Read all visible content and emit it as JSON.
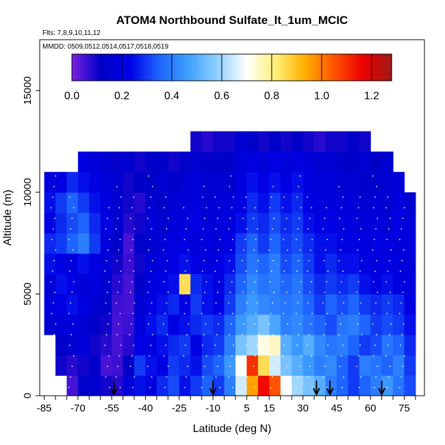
{
  "chart_data": {
    "type": "heatmap",
    "title": "ATOM4 Northbound Sulfate_lt_1um_MCIC",
    "subtitle_flights": "Flts: 7,8,9,10,11,12",
    "subtitle_dates": "MMDD: 0509,0512,0514,0517,0518,0519",
    "xlabel": "Latitude (deg N)",
    "ylabel": "Altitude (m)",
    "xlim": [
      -87,
      84
    ],
    "ylim": [
      0,
      17500
    ],
    "x_ticks": [
      -85,
      -70,
      -55,
      -40,
      -25,
      -10,
      5,
      15,
      30,
      45,
      60,
      75
    ],
    "x_tick_labels": [
      "-85",
      "-70",
      "-55",
      "-40",
      "-25",
      "-10",
      "5",
      "15",
      "30",
      "45",
      "60",
      "75"
    ],
    "y_ticks": [
      0,
      5000,
      10000,
      15000
    ],
    "y_tick_labels": [
      "0",
      "5000",
      "10000",
      "15000"
    ],
    "colorbar": {
      "min": 0.0,
      "max": 1.28,
      "ticks": [
        0.0,
        0.2,
        0.4,
        0.6,
        0.8,
        1.0,
        1.2
      ],
      "tick_labels": [
        "0.0",
        "0.2",
        "0.4",
        "0.6",
        "0.8",
        "1.0",
        "1.2"
      ],
      "colors": [
        "#7b1fe0",
        "#0000c8",
        "#0000e6",
        "#1e64ff",
        "#3fa0ff",
        "#8fcfff",
        "#ffffff",
        "#fff07a",
        "#ffb000",
        "#ff5500",
        "#ee0000",
        "#a01818"
      ]
    },
    "arrow_latitudes": [
      -54,
      -10,
      36,
      42,
      65
    ],
    "lat_bins": [
      -85,
      -80,
      -75,
      -70,
      -65,
      -60,
      -55,
      -50,
      -45,
      -40,
      -35,
      -30,
      -25,
      -20,
      -15,
      -10,
      -5,
      0,
      5,
      10,
      15,
      20,
      25,
      30,
      35,
      40,
      45,
      50,
      55,
      60,
      65,
      70,
      75,
      80
    ],
    "alt_bins_km": [
      0,
      1,
      2,
      3,
      4,
      5,
      6,
      7,
      8,
      9,
      10,
      11,
      12,
      13
    ],
    "sulfate_grid": [
      [
        null,
        null,
        0.05,
        0.12,
        0.15,
        0.1,
        0.08,
        0.18,
        0.25,
        0.2,
        0.28,
        0.32,
        0.25,
        0.3,
        0.35,
        0.3,
        0.4,
        0.65,
        0.95,
        1.15,
        1.05,
        0.7,
        0.6,
        0.55,
        0.5,
        0.4,
        0.35,
        0.3,
        0.35,
        0.4,
        0.45,
        0.38,
        0.32,
        null
      ],
      [
        null,
        0.1,
        0.08,
        0.1,
        0.12,
        0.05,
        0.06,
        0.12,
        0.3,
        0.25,
        0.22,
        0.3,
        0.28,
        0.25,
        0.32,
        0.35,
        0.45,
        0.7,
        1.1,
        0.85,
        0.65,
        0.55,
        0.5,
        0.45,
        0.4,
        0.42,
        0.35,
        0.3,
        0.4,
        0.38,
        0.35,
        0.4,
        0.3,
        null
      ],
      [
        null,
        0.12,
        0.15,
        0.18,
        0.1,
        0.08,
        0.05,
        0.08,
        0.22,
        0.2,
        0.25,
        0.28,
        0.3,
        0.22,
        0.28,
        0.3,
        0.4,
        0.55,
        0.6,
        0.72,
        0.75,
        0.5,
        0.45,
        0.5,
        0.42,
        0.38,
        0.4,
        0.35,
        0.3,
        0.32,
        0.38,
        0.35,
        0.28,
        null
      ],
      [
        0.15,
        0.18,
        0.2,
        0.15,
        0.12,
        0.1,
        0.05,
        0.06,
        0.18,
        0.25,
        0.28,
        0.22,
        0.25,
        0.28,
        0.3,
        0.28,
        0.35,
        0.45,
        0.5,
        0.55,
        0.48,
        0.4,
        0.42,
        0.38,
        0.35,
        0.32,
        0.38,
        0.4,
        0.35,
        0.3,
        0.32,
        0.3,
        0.25,
        null
      ],
      [
        0.2,
        0.22,
        0.25,
        0.2,
        0.15,
        0.12,
        0.06,
        0.05,
        0.15,
        0.22,
        0.25,
        0.28,
        0.22,
        0.3,
        0.25,
        0.22,
        0.3,
        0.4,
        0.45,
        0.42,
        0.4,
        0.38,
        0.4,
        0.35,
        0.3,
        0.35,
        0.32,
        0.35,
        0.3,
        0.28,
        0.3,
        0.28,
        0.22,
        null
      ],
      [
        0.18,
        0.25,
        0.22,
        0.18,
        0.2,
        0.15,
        0.08,
        0.05,
        0.12,
        0.2,
        0.22,
        0.25,
        0.85,
        0.28,
        0.25,
        0.2,
        0.28,
        0.35,
        0.42,
        0.38,
        0.4,
        0.35,
        0.38,
        0.32,
        0.28,
        0.3,
        0.28,
        0.3,
        0.25,
        0.22,
        0.25,
        0.22,
        0.2,
        null
      ],
      [
        0.25,
        0.22,
        0.2,
        0.25,
        0.22,
        0.18,
        0.1,
        0.06,
        0.1,
        0.18,
        0.2,
        0.22,
        0.25,
        0.22,
        0.2,
        0.22,
        0.25,
        0.32,
        0.38,
        0.35,
        0.4,
        0.32,
        0.35,
        0.3,
        0.25,
        0.28,
        0.25,
        0.25,
        0.22,
        0.2,
        0.22,
        0.2,
        0.18,
        null
      ],
      [
        0.28,
        0.3,
        0.35,
        0.4,
        0.3,
        0.2,
        0.12,
        0.05,
        0.12,
        0.15,
        0.18,
        0.2,
        0.22,
        0.18,
        0.2,
        0.18,
        0.22,
        0.3,
        0.35,
        0.3,
        0.35,
        0.3,
        0.32,
        0.28,
        0.25,
        0.25,
        0.22,
        0.22,
        0.2,
        0.22,
        0.2,
        0.18,
        0.2,
        null
      ],
      [
        0.22,
        0.28,
        0.32,
        0.35,
        0.28,
        0.22,
        0.15,
        0.08,
        0.1,
        0.18,
        0.15,
        0.18,
        0.2,
        0.22,
        0.18,
        0.2,
        0.2,
        0.25,
        0.3,
        0.28,
        0.32,
        0.28,
        0.3,
        0.25,
        0.22,
        0.22,
        0.2,
        0.2,
        0.18,
        0.2,
        0.18,
        0.22,
        0.18,
        null
      ],
      [
        0.25,
        0.3,
        0.35,
        0.3,
        0.25,
        0.2,
        0.15,
        0.1,
        0.08,
        0.15,
        0.12,
        0.15,
        0.18,
        0.2,
        0.15,
        0.18,
        0.18,
        0.22,
        0.28,
        0.25,
        0.3,
        0.25,
        0.28,
        0.22,
        0.2,
        0.2,
        0.18,
        0.18,
        0.15,
        0.18,
        0.15,
        0.2,
        0.15,
        null
      ],
      [
        0.2,
        0.22,
        0.28,
        0.25,
        0.22,
        0.18,
        0.15,
        0.1,
        0.12,
        0.12,
        0.15,
        0.12,
        0.15,
        0.18,
        0.15,
        0.15,
        0.15,
        0.2,
        0.25,
        0.22,
        0.25,
        0.22,
        0.25,
        0.2,
        0.18,
        0.18,
        0.15,
        0.15,
        0.12,
        0.15,
        0.15,
        0.18,
        null,
        null
      ],
      [
        null,
        null,
        null,
        0.2,
        0.18,
        0.15,
        0.12,
        0.15,
        0.1,
        0.12,
        0.12,
        0.1,
        0.12,
        0.15,
        0.12,
        0.12,
        0.12,
        0.18,
        0.2,
        0.18,
        0.22,
        0.18,
        0.2,
        0.18,
        0.15,
        0.15,
        0.12,
        0.12,
        0.15,
        0.12,
        0.15,
        null,
        null,
        null
      ],
      [
        null,
        null,
        null,
        null,
        null,
        null,
        null,
        null,
        null,
        null,
        null,
        null,
        null,
        0.1,
        0.08,
        0.1,
        0.1,
        0.15,
        0.12,
        0.1,
        0.12,
        0.1,
        0.12,
        0.1,
        0.08,
        0.1,
        0.1,
        0.12,
        0.1,
        null,
        null,
        null,
        null,
        null
      ],
      [
        null,
        null,
        null,
        null,
        null,
        null,
        null,
        null,
        null,
        null,
        null,
        null,
        null,
        null,
        null,
        null,
        null,
        null,
        null,
        null,
        null,
        null,
        null,
        null,
        null,
        null,
        null,
        null,
        null,
        null,
        null,
        null,
        null,
        null
      ]
    ]
  }
}
